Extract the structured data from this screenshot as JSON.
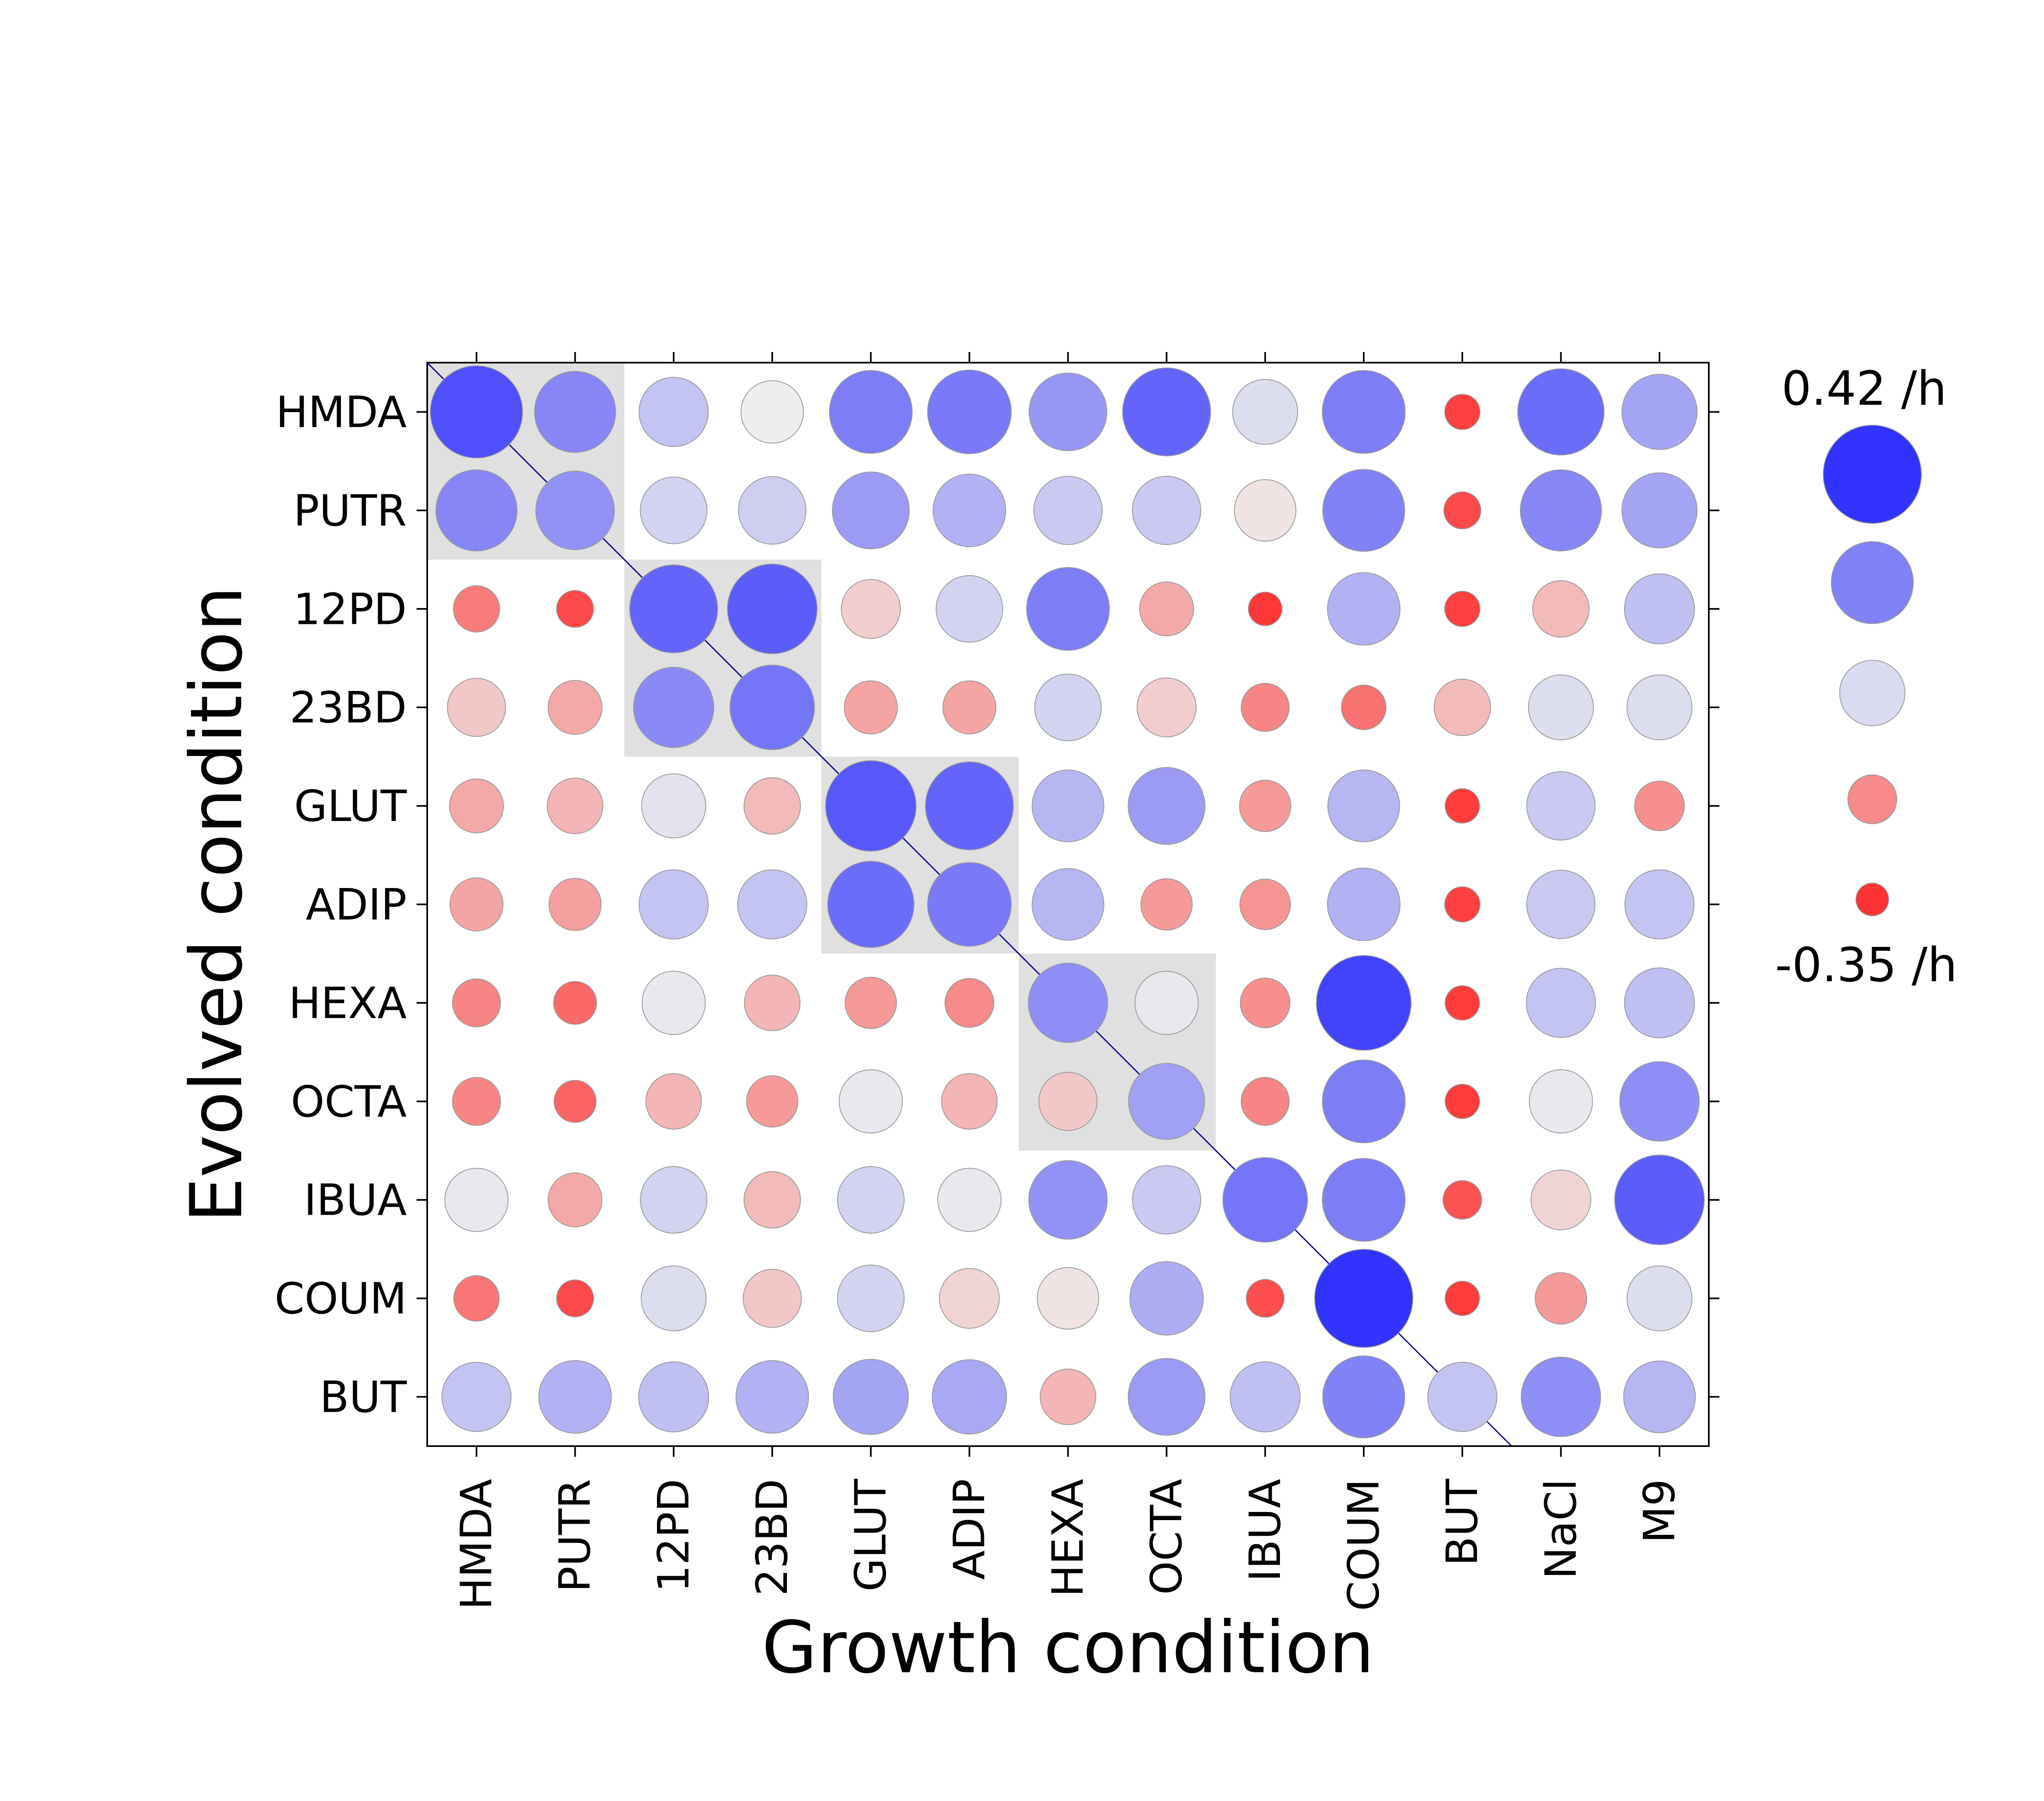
{
  "chart_data": {
    "type": "bubble-heatmap",
    "title": "",
    "xlabel": "Growth condition",
    "ylabel": "Evolved condition",
    "x_categories": [
      "HMDA",
      "PUTR",
      "12PD",
      "23BD",
      "GLUT",
      "ADIP",
      "HEXA",
      "OCTA",
      "IBUA",
      "COUM",
      "BUT",
      "NaCl",
      "M9"
    ],
    "y_categories": [
      "HMDA",
      "PUTR",
      "12PD",
      "23BD",
      "GLUT",
      "ADIP",
      "HEXA",
      "OCTA",
      "IBUA",
      "COUM",
      "BUT"
    ],
    "value_unit": "/h",
    "value_range": [
      -0.35,
      0.42
    ],
    "legend": {
      "max_label": "0.42 /h",
      "min_label": "-0.35 /h",
      "levels": [
        0.42,
        0.23,
        0.035,
        -0.16,
        -0.35
      ]
    },
    "shaded_blocks": [
      {
        "rows": [
          "HMDA",
          "PUTR"
        ],
        "cols": [
          "HMDA",
          "PUTR"
        ]
      },
      {
        "rows": [
          "12PD",
          "23BD"
        ],
        "cols": [
          "12PD",
          "23BD"
        ]
      },
      {
        "rows": [
          "GLUT",
          "ADIP"
        ],
        "cols": [
          "GLUT",
          "ADIP"
        ]
      },
      {
        "rows": [
          "HEXA",
          "OCTA"
        ],
        "cols": [
          "HEXA",
          "OCTA"
        ]
      }
    ],
    "diagonal_line": true,
    "grid": false,
    "colors": {
      "positive": "#3333ff",
      "negative": "#ff3333",
      "neutral": "#eeeeee",
      "shade": "#e0e0e0",
      "diagonal": "#00008b"
    },
    "values": [
      [
        0.35,
        0.22,
        0.08,
        0.0,
        0.24,
        0.25,
        0.18,
        0.3,
        0.03,
        0.24,
        -0.32,
        0.28,
        0.15
      ],
      [
        0.22,
        0.19,
        0.05,
        0.06,
        0.17,
        0.12,
        0.07,
        0.07,
        -0.01,
        0.23,
        -0.3,
        0.22,
        0.15
      ],
      [
        -0.19,
        -0.3,
        0.3,
        0.32,
        -0.04,
        0.05,
        0.24,
        -0.1,
        -0.34,
        0.12,
        -0.32,
        -0.07,
        0.09
      ],
      [
        -0.05,
        -0.1,
        0.21,
        0.26,
        -0.11,
        -0.11,
        0.05,
        -0.04,
        -0.17,
        -0.21,
        -0.07,
        0.03,
        0.03
      ],
      [
        -0.1,
        -0.08,
        0.02,
        -0.07,
        0.33,
        0.3,
        0.11,
        0.17,
        -0.13,
        0.11,
        -0.33,
        0.07,
        -0.15
      ],
      [
        -0.11,
        -0.12,
        0.08,
        0.08,
        0.28,
        0.25,
        0.11,
        -0.13,
        -0.14,
        0.12,
        -0.32,
        0.07,
        0.08
      ],
      [
        -0.17,
        -0.23,
        0.01,
        -0.08,
        -0.13,
        -0.16,
        0.2,
        0.01,
        -0.15,
        0.38,
        -0.33,
        0.08,
        0.09
      ],
      [
        -0.17,
        -0.24,
        -0.08,
        -0.13,
        0.01,
        -0.08,
        -0.05,
        0.16,
        -0.17,
        0.24,
        -0.33,
        0.01,
        0.2
      ],
      [
        0.01,
        -0.1,
        0.05,
        -0.07,
        0.05,
        0.01,
        0.19,
        0.07,
        0.26,
        0.24,
        -0.28,
        -0.03,
        0.32
      ],
      [
        -0.2,
        -0.3,
        0.03,
        -0.05,
        0.05,
        -0.03,
        -0.01,
        0.13,
        -0.29,
        0.42,
        -0.33,
        -0.13,
        0.03
      ],
      [
        0.08,
        0.12,
        0.09,
        0.12,
        0.15,
        0.14,
        -0.08,
        0.17,
        0.09,
        0.23,
        0.08,
        0.2,
        0.11
      ]
    ]
  }
}
